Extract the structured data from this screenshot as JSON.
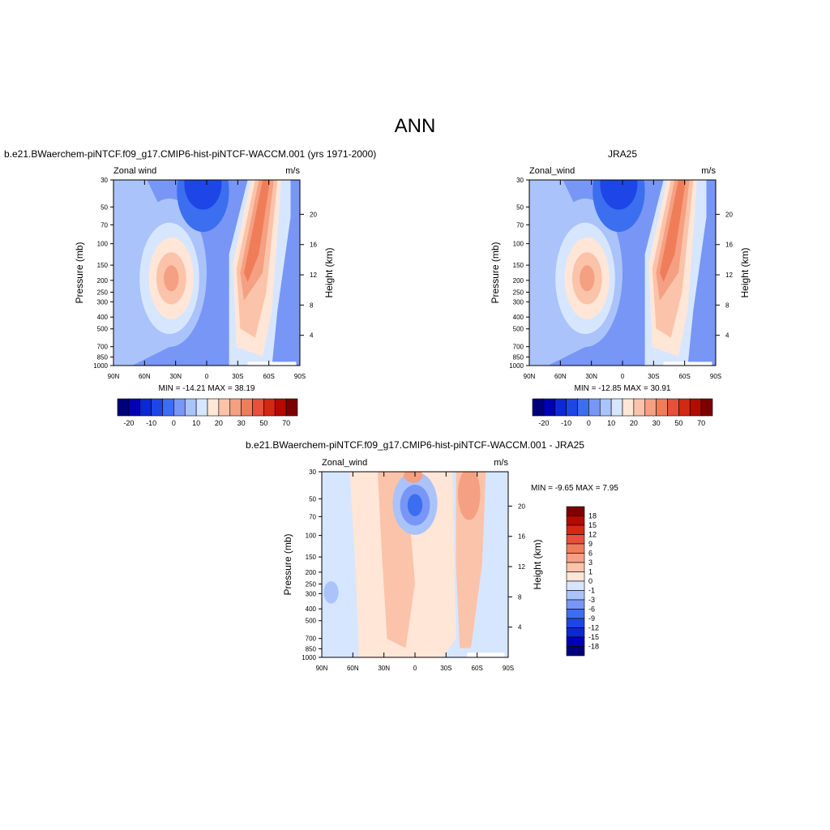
{
  "page_title": "ANN",
  "chart_data": [
    {
      "type": "contour",
      "title_left": "b.e21.BWaerchem-piNTCF.f09_g17.CMIP6-hist-piNTCF-WACCM.001 (yrs 1971-2000)",
      "variable": "Zonal wind",
      "units": "m/s",
      "ylabel": "Pressure (mb)",
      "y2label": "Height (km)",
      "x_ticks": [
        "90N",
        "60N",
        "30N",
        "0",
        "30S",
        "60S",
        "90S"
      ],
      "y_ticks": [
        30,
        50,
        70,
        100,
        150,
        200,
        250,
        300,
        400,
        500,
        700,
        850,
        1000
      ],
      "y2_ticks": [
        20,
        16,
        12,
        8,
        4
      ],
      "stats": "MIN = -14.21  MAX =  38.19",
      "colorbar": {
        "orientation": "horizontal",
        "labels": [
          "-20",
          "-10",
          "0",
          "10",
          "20",
          "30",
          "50",
          "70"
        ],
        "colors": [
          "#00007d",
          "#0000b4",
          "#0c28d2",
          "#1e46e6",
          "#3c6ef0",
          "#7896f5",
          "#aac3fa",
          "#d7e6ff",
          "#ffe6d7",
          "#fac3aa",
          "#f5a082",
          "#f07d5a",
          "#e6503c",
          "#d22814",
          "#b40a00",
          "#7d0000"
        ]
      }
    },
    {
      "type": "contour",
      "title_center": "JRA25",
      "variable": "Zonal_wind",
      "units": "m/s",
      "ylabel": "Pressure (mb)",
      "y2label": "Height (km)",
      "x_ticks": [
        "90N",
        "60N",
        "30N",
        "0",
        "30S",
        "60S",
        "90S"
      ],
      "y_ticks": [
        30,
        50,
        70,
        100,
        150,
        200,
        250,
        300,
        400,
        500,
        700,
        850,
        1000
      ],
      "y2_ticks": [
        20,
        16,
        12,
        8,
        4
      ],
      "stats": "MIN = -12.85  MAX =  30.91",
      "colorbar": {
        "orientation": "horizontal",
        "labels": [
          "-20",
          "-10",
          "0",
          "10",
          "20",
          "30",
          "50",
          "70"
        ],
        "colors": [
          "#00007d",
          "#0000b4",
          "#0c28d2",
          "#1e46e6",
          "#3c6ef0",
          "#7896f5",
          "#aac3fa",
          "#d7e6ff",
          "#ffe6d7",
          "#fac3aa",
          "#f5a082",
          "#f07d5a",
          "#e6503c",
          "#d22814",
          "#b40a00",
          "#7d0000"
        ]
      }
    },
    {
      "type": "contour",
      "title_center": "b.e21.BWaerchem-piNTCF.f09_g17.CMIP6-hist-piNTCF-WACCM.001 - JRA25",
      "variable": "Zonal_wind",
      "units": "m/s",
      "ylabel": "Pressure (mb)",
      "y2label": "Height (km)",
      "x_ticks": [
        "90N",
        "60N",
        "30N",
        "0",
        "30S",
        "60S",
        "90S"
      ],
      "y_ticks": [
        30,
        50,
        70,
        100,
        150,
        200,
        250,
        300,
        400,
        500,
        700,
        850,
        1000
      ],
      "y2_ticks": [
        20,
        16,
        12,
        8,
        4
      ],
      "stats": "MIN =  -9.65  MAX =   7.95",
      "colorbar": {
        "orientation": "vertical",
        "labels": [
          "18",
          "15",
          "12",
          "9",
          "6",
          "3",
          "1",
          "0",
          "-1",
          "-3",
          "-6",
          "-9",
          "-12",
          "-15",
          "-18"
        ],
        "colors": [
          "#7d0000",
          "#b40a00",
          "#d22814",
          "#e6503c",
          "#f07d5a",
          "#f5a082",
          "#fac3aa",
          "#ffe6d7",
          "#d7e6ff",
          "#aac3fa",
          "#7896f5",
          "#3c6ef0",
          "#1e46e6",
          "#0c28d2",
          "#0000b4",
          "#00007d"
        ]
      }
    }
  ]
}
